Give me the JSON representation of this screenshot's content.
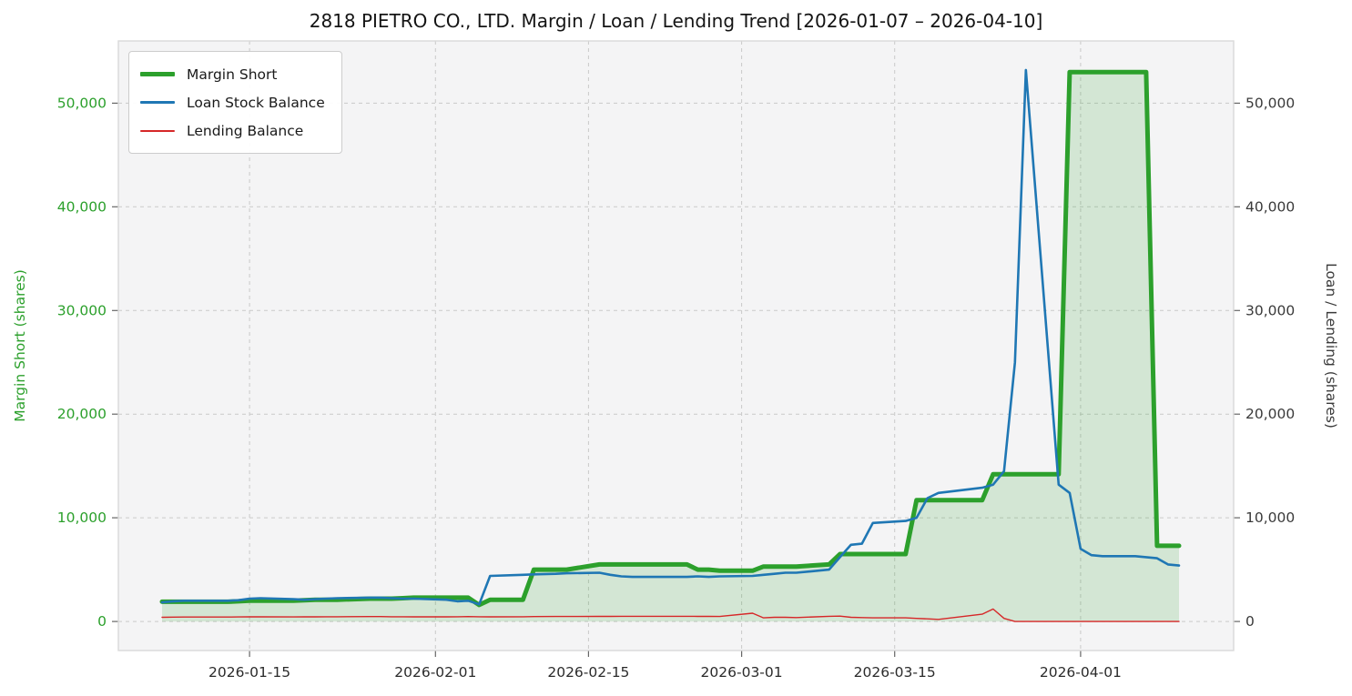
{
  "chart_data": {
    "type": "line",
    "title": "2818 PIETRO CO., LTD. Margin / Loan / Lending Trend [2026-01-07 – 2026-04-10]",
    "ylabel_left": "Margin Short (shares)",
    "ylabel_right": "Loan / Lending (shares)",
    "xlabel": "",
    "ylim": [
      -2800,
      56000
    ],
    "x_range_padded": [
      "2026-01-03",
      "2026-04-15"
    ],
    "grid": true,
    "legend_position": "upper-left",
    "y_tick_values": [
      0,
      10000,
      20000,
      30000,
      40000,
      50000
    ],
    "y_tick_labels": [
      "0",
      "10,000",
      "20,000",
      "30,000",
      "40,000",
      "50,000"
    ],
    "x_ticks": [
      "2026-01-15",
      "2026-02-01",
      "2026-02-15",
      "2026-03-01",
      "2026-03-15",
      "2026-04-01"
    ],
    "colors": {
      "left_axis_text": "#2ca02c",
      "right_axis_text": "#3a3a3a",
      "x_axis_text": "#2b2b2b",
      "grid": "#c9c9c9",
      "plot_bg": "#f4f4f5",
      "plot_border": "#d9d9d9",
      "tick_mark": "#666666"
    },
    "dates": [
      "2026-01-07",
      "2026-01-08",
      "2026-01-09",
      "2026-01-13",
      "2026-01-14",
      "2026-01-15",
      "2026-01-16",
      "2026-01-19",
      "2026-01-20",
      "2026-01-21",
      "2026-01-22",
      "2026-01-23",
      "2026-01-26",
      "2026-01-27",
      "2026-01-28",
      "2026-01-29",
      "2026-01-30",
      "2026-02-02",
      "2026-02-03",
      "2026-02-04",
      "2026-02-05",
      "2026-02-06",
      "2026-02-09",
      "2026-02-10",
      "2026-02-12",
      "2026-02-13",
      "2026-02-16",
      "2026-02-17",
      "2026-02-18",
      "2026-02-19",
      "2026-02-20",
      "2026-02-24",
      "2026-02-25",
      "2026-02-26",
      "2026-02-27",
      "2026-03-02",
      "2026-03-03",
      "2026-03-04",
      "2026-03-05",
      "2026-03-06",
      "2026-03-09",
      "2026-03-10",
      "2026-03-11",
      "2026-03-12",
      "2026-03-13",
      "2026-03-16",
      "2026-03-17",
      "2026-03-18",
      "2026-03-19",
      "2026-03-23",
      "2026-03-24",
      "2026-03-25",
      "2026-03-26",
      "2026-03-27",
      "2026-03-30",
      "2026-03-31",
      "2026-04-01",
      "2026-04-02",
      "2026-04-03",
      "2026-04-06",
      "2026-04-07",
      "2026-04-08",
      "2026-04-09",
      "2026-04-10"
    ],
    "series": [
      {
        "name": "Margin Short",
        "axis": "left",
        "color": "#2ca02c",
        "line_width": 5,
        "area_fill": "rgba(44,160,44,0.16)",
        "values": [
          1900,
          1900,
          1900,
          1900,
          1950,
          2000,
          2000,
          2000,
          2050,
          2100,
          2100,
          2100,
          2200,
          2200,
          2200,
          2250,
          2300,
          2300,
          2300,
          2300,
          1600,
          2100,
          2100,
          5000,
          5000,
          5000,
          5500,
          5500,
          5500,
          5500,
          5500,
          5500,
          5000,
          5000,
          4900,
          4900,
          5300,
          5300,
          5300,
          5300,
          5500,
          6500,
          6500,
          6500,
          6500,
          6500,
          11700,
          11700,
          11700,
          11700,
          14200,
          14200,
          14200,
          14200,
          14200,
          53000,
          53000,
          53000,
          53000,
          53000,
          53000,
          7300,
          7300,
          7300
        ]
      },
      {
        "name": "Loan Stock Balance",
        "axis": "right",
        "color": "#1f77b4",
        "line_width": 2.6,
        "area_fill": null,
        "values": [
          1850,
          1950,
          2000,
          2000,
          2050,
          2200,
          2250,
          2150,
          2100,
          2150,
          2200,
          2250,
          2300,
          2300,
          2250,
          2200,
          2200,
          2100,
          1950,
          2000,
          1650,
          4400,
          4500,
          4550,
          4600,
          4650,
          4700,
          4500,
          4350,
          4300,
          4300,
          4300,
          4350,
          4300,
          4350,
          4400,
          4500,
          4600,
          4700,
          4700,
          5000,
          6200,
          7400,
          7500,
          9500,
          9700,
          10000,
          11900,
          12400,
          12900,
          13200,
          14500,
          25000,
          53200,
          13200,
          12400,
          7000,
          6400,
          6300,
          6300,
          6200,
          6100,
          5500,
          5400
        ]
      },
      {
        "name": "Lending Balance",
        "axis": "right",
        "color": "#d62728",
        "line_width": 1.4,
        "area_fill": null,
        "values": [
          400,
          420,
          430,
          430,
          440,
          450,
          450,
          440,
          450,
          450,
          460,
          460,
          470,
          470,
          460,
          460,
          450,
          450,
          460,
          470,
          460,
          450,
          460,
          470,
          480,
          480,
          490,
          490,
          500,
          500,
          500,
          500,
          490,
          490,
          480,
          800,
          350,
          400,
          400,
          380,
          500,
          520,
          400,
          380,
          350,
          350,
          300,
          250,
          200,
          700,
          1200,
          300,
          0,
          0,
          0,
          0,
          0,
          0,
          0,
          0,
          0,
          0,
          0,
          0
        ]
      }
    ]
  }
}
